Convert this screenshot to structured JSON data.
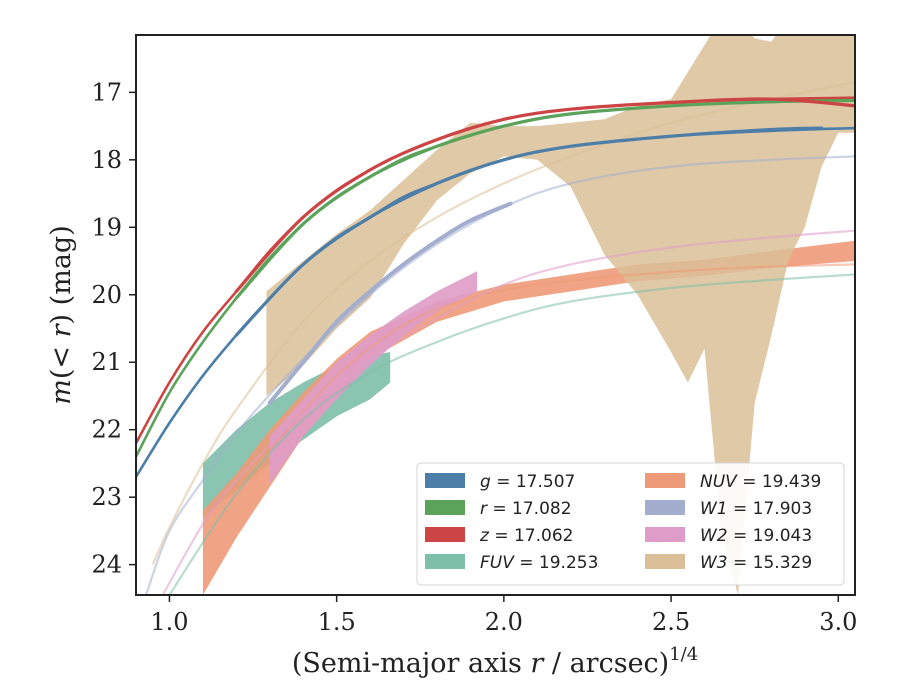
{
  "chart_data": {
    "type": "line",
    "xlabel": "(Semi-major axis r / arcsec)^{1/4}",
    "xlabel_parts": {
      "main": "(Semi-major axis ",
      "var": "r",
      "rest": " / arcsec)",
      "sup": "1/4"
    },
    "ylabel": "m(< r) (mag)",
    "ylabel_parts": {
      "m": "m",
      "open": "(",
      "lt": "< ",
      "r": "r",
      "close": ") (mag)"
    },
    "xlim": [
      0.9,
      3.05
    ],
    "ylim": [
      24.45,
      16.15
    ],
    "y_inverted": true,
    "xticks": [
      1.0,
      1.5,
      2.0,
      2.5,
      3.0
    ],
    "xtick_labels": [
      "1.0",
      "1.5",
      "2.0",
      "2.5",
      "3.0"
    ],
    "yticks": [
      17,
      18,
      19,
      20,
      21,
      22,
      23,
      24
    ],
    "ytick_labels": [
      "17",
      "18",
      "19",
      "20",
      "21",
      "22",
      "23",
      "24"
    ],
    "grid": false,
    "legend_position": "lower-right",
    "series": [
      {
        "name": "g = 17.507",
        "band": "g",
        "value": "17.507",
        "color": "#4c7ea8",
        "x": [
          1.2,
          1.4,
          1.6,
          1.8,
          2.0,
          2.2,
          2.5,
          2.8,
          2.95
        ],
        "y": [
          20.6,
          19.55,
          18.85,
          18.35,
          18.0,
          17.8,
          17.65,
          17.55,
          17.53
        ]
      },
      {
        "name": "r = 17.082",
        "band": "r",
        "value": "17.082",
        "color": "#5ba35b",
        "x": [
          1.2,
          1.4,
          1.6,
          1.8,
          2.0,
          2.2,
          2.5,
          2.8,
          3.05
        ],
        "y": [
          20.05,
          18.95,
          18.25,
          17.8,
          17.5,
          17.32,
          17.2,
          17.14,
          17.12
        ]
      },
      {
        "name": "z = 17.062",
        "band": "z",
        "value": "17.062",
        "color": "#cc4444",
        "x": [
          1.2,
          1.4,
          1.6,
          1.8,
          2.0,
          2.2,
          2.5,
          2.8,
          3.05
        ],
        "y": [
          19.95,
          18.85,
          18.15,
          17.7,
          17.4,
          17.25,
          17.15,
          17.1,
          17.2
        ]
      },
      {
        "name": "FUV = 19.253",
        "band": "FUV",
        "value": "19.253",
        "color": "#7dbfa8",
        "x": [
          1.1,
          1.2,
          1.3,
          1.4,
          1.5,
          1.6,
          1.66
        ],
        "y_upper": [
          22.5,
          22.0,
          21.6,
          21.3,
          21.05,
          20.9,
          20.85
        ],
        "y_lower": [
          23.3,
          22.9,
          22.5,
          22.15,
          21.8,
          21.55,
          21.3
        ]
      },
      {
        "name": "NUV = 19.439",
        "band": "NUV",
        "value": "19.439",
        "color": "#ee9a78",
        "x": [
          1.1,
          1.2,
          1.3,
          1.4,
          1.5,
          1.6,
          1.8,
          2.0,
          2.2,
          2.4,
          2.6,
          2.8,
          3.05
        ],
        "y_upper": [
          23.2,
          22.65,
          22.0,
          21.45,
          20.95,
          20.55,
          20.1,
          19.85,
          19.7,
          19.55,
          19.48,
          19.35,
          19.2
        ],
        "y_lower": [
          24.45,
          23.6,
          22.85,
          22.1,
          21.5,
          20.95,
          20.4,
          20.1,
          19.95,
          19.8,
          19.72,
          19.6,
          19.5
        ]
      },
      {
        "name": "W1 = 17.903",
        "band": "W1",
        "value": "17.903",
        "color": "#a3aecf",
        "x": [
          1.3,
          1.4,
          1.5,
          1.6,
          1.7,
          1.8,
          1.9,
          2.02
        ],
        "y": [
          21.6,
          21.0,
          20.4,
          19.95,
          19.55,
          19.2,
          18.9,
          18.65
        ]
      },
      {
        "name": "W2 = 19.043",
        "band": "W2",
        "value": "19.043",
        "color": "#df9cc8",
        "x": [
          1.3,
          1.4,
          1.5,
          1.6,
          1.7,
          1.8,
          1.92
        ],
        "y_upper": [
          22.1,
          21.55,
          21.0,
          20.6,
          20.25,
          19.95,
          19.65
        ],
        "y_lower": [
          22.8,
          22.1,
          21.55,
          21.05,
          20.6,
          20.25,
          19.95
        ]
      },
      {
        "name": "W3 = 15.329",
        "band": "W3",
        "value": "15.329",
        "color": "#dbbf98",
        "x": [
          1.29,
          1.4,
          1.5,
          1.6,
          1.7,
          1.8,
          1.9,
          2.0,
          2.1,
          2.2,
          2.3,
          2.4,
          2.5,
          2.55,
          2.6,
          2.65,
          2.7,
          2.75,
          2.8,
          2.85,
          2.9,
          2.95,
          3.0,
          3.05
        ],
        "y_upper": [
          19.95,
          19.5,
          19.1,
          18.75,
          18.3,
          17.85,
          17.45,
          17.5,
          17.5,
          17.45,
          17.4,
          17.2,
          17.1,
          16.7,
          16.3,
          15.9,
          15.9,
          16.2,
          16.25,
          15.9,
          15.9,
          16.1,
          16.15,
          16.15
        ],
        "y_lower": [
          21.5,
          21.05,
          20.5,
          20.05,
          19.25,
          18.6,
          18.2,
          17.95,
          18.0,
          18.4,
          19.4,
          20.0,
          20.85,
          21.3,
          20.8,
          23.5,
          24.45,
          21.6,
          20.6,
          19.5,
          19.0,
          18.1,
          17.6,
          17.6
        ]
      }
    ],
    "model_curves": [
      {
        "band": "FUV",
        "color": "#7dbfa8",
        "x": [
          1.0,
          1.2,
          1.4,
          1.6,
          1.8,
          2.0,
          2.2,
          2.5,
          2.8,
          3.05
        ],
        "y": [
          24.45,
          22.95,
          21.85,
          21.15,
          20.7,
          20.35,
          20.1,
          19.9,
          19.78,
          19.7
        ]
      },
      {
        "band": "NUV",
        "color": "#ee9a78",
        "x": [
          1.3,
          1.5,
          1.7,
          1.9,
          2.1,
          2.4,
          2.7,
          3.05
        ],
        "y": [
          22.3,
          21.2,
          20.45,
          20.05,
          19.85,
          19.7,
          19.6,
          19.55
        ]
      },
      {
        "band": "W1",
        "color": "#a3aecf",
        "x": [
          0.93,
          1.0,
          1.1,
          1.2,
          1.4,
          1.6,
          1.8,
          2.0,
          2.2,
          2.5,
          2.8,
          3.05
        ],
        "y": [
          24.45,
          23.5,
          22.75,
          22.05,
          20.95,
          20.0,
          19.25,
          18.7,
          18.35,
          18.1,
          18.0,
          17.95
        ]
      },
      {
        "band": "W2",
        "color": "#df9cc8",
        "x": [
          0.98,
          1.1,
          1.2,
          1.4,
          1.6,
          1.8,
          2.0,
          2.2,
          2.5,
          2.8,
          3.05
        ],
        "y": [
          24.45,
          23.4,
          22.75,
          21.75,
          20.95,
          20.35,
          19.85,
          19.55,
          19.3,
          19.15,
          19.05
        ]
      },
      {
        "band": "W3",
        "color": "#dbbf98",
        "x": [
          0.95,
          1.0,
          1.1,
          1.2,
          1.4,
          1.6,
          1.8,
          2.0,
          2.2,
          2.5,
          2.8,
          3.05
        ],
        "y": [
          24.0,
          23.45,
          22.5,
          21.7,
          20.4,
          19.5,
          18.85,
          18.35,
          17.95,
          17.45,
          17.1,
          16.85
        ]
      },
      {
        "band": "g",
        "color": "#4c7ea8",
        "x": [
          0.9,
          1.0,
          1.1,
          1.2,
          1.3,
          1.4,
          1.5,
          1.6,
          1.7,
          1.8,
          2.0,
          2.2,
          2.5,
          2.8,
          3.05
        ],
        "y": [
          22.7,
          21.9,
          21.2,
          20.6,
          20.05,
          19.55,
          19.15,
          18.85,
          18.55,
          18.35,
          18.0,
          17.8,
          17.65,
          17.57,
          17.53
        ]
      },
      {
        "band": "r",
        "color": "#5ba35b",
        "x": [
          0.9,
          1.0,
          1.1,
          1.2,
          1.3,
          1.4,
          1.5,
          1.6,
          1.7,
          1.8,
          2.0,
          2.2,
          2.5,
          2.8,
          3.05
        ],
        "y": [
          22.4,
          21.45,
          20.7,
          20.05,
          19.45,
          18.95,
          18.55,
          18.25,
          17.98,
          17.8,
          17.5,
          17.32,
          17.2,
          17.14,
          17.12
        ]
      },
      {
        "band": "z",
        "color": "#cc4444",
        "x": [
          0.9,
          1.0,
          1.1,
          1.2,
          1.3,
          1.4,
          1.5,
          1.6,
          1.7,
          1.8,
          2.0,
          2.2,
          2.5,
          2.8,
          3.05
        ],
        "y": [
          22.2,
          21.3,
          20.55,
          19.95,
          19.35,
          18.85,
          18.45,
          18.15,
          17.9,
          17.7,
          17.4,
          17.25,
          17.15,
          17.1,
          17.08
        ]
      }
    ],
    "legend": [
      {
        "band": "g",
        "value": "17.507",
        "color": "#4c7ea8"
      },
      {
        "band": "r",
        "value": "17.082",
        "color": "#5ba35b"
      },
      {
        "band": "z",
        "value": "17.062",
        "color": "#cc4444"
      },
      {
        "band": "FUV",
        "value": "19.253",
        "color": "#7dbfa8"
      },
      {
        "band": "NUV",
        "value": "19.439",
        "color": "#ee9a78"
      },
      {
        "band": "W1",
        "value": "17.903",
        "color": "#a3aecf"
      },
      {
        "band": "W2",
        "value": "19.043",
        "color": "#df9cc8"
      },
      {
        "band": "W3",
        "value": "15.329",
        "color": "#dbbf98"
      }
    ]
  }
}
